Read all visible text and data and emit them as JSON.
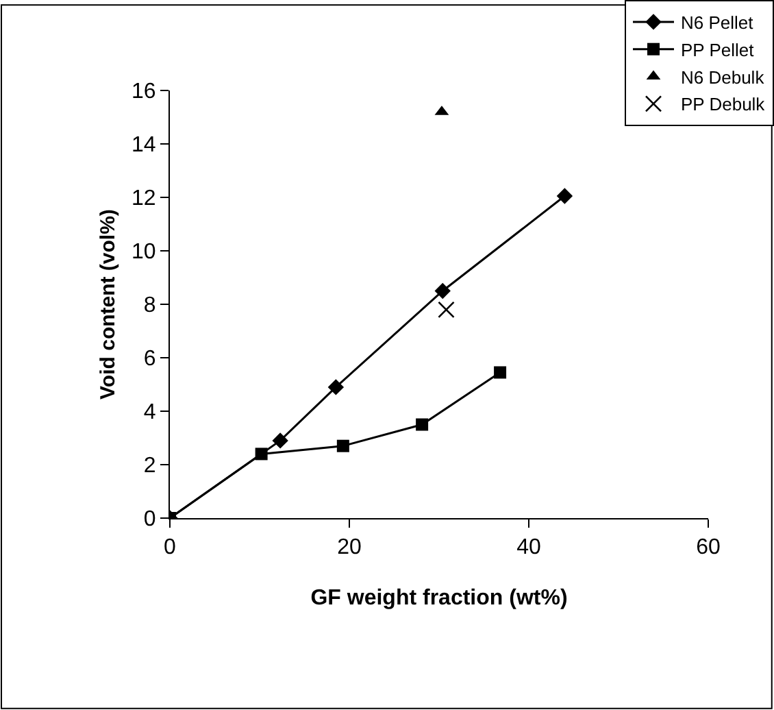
{
  "chart_data": {
    "type": "line",
    "xlabel": "GF weight fraction (wt%)",
    "ylabel": "Void content (vol%)",
    "xlim": [
      0,
      60
    ],
    "xticks": [
      0,
      20,
      40,
      60
    ],
    "ylim": [
      0,
      16
    ],
    "yticks": [
      0,
      2,
      4,
      6,
      8,
      10,
      12,
      14,
      16
    ],
    "legend": "top right",
    "series": [
      {
        "name": "N6 Pellet",
        "marker": "diamond",
        "color": "#000000",
        "x": [
          0,
          12.3,
          18.5,
          30.4,
          44
        ],
        "values": [
          0,
          2.9,
          4.9,
          8.5,
          12.05
        ]
      },
      {
        "name": "PP Pellet",
        "marker": "square",
        "color": "#000000",
        "x": [
          0,
          10.2,
          19.3,
          28.1,
          36.8
        ],
        "values": [
          0,
          2.4,
          2.7,
          3.5,
          5.45
        ]
      },
      {
        "name": "N6 Debulk",
        "type": "scatter",
        "marker": "triangle",
        "color": "#000000",
        "x": [
          30.3
        ],
        "values": [
          15.2
        ]
      },
      {
        "name": "PP Debulk",
        "type": "scatter",
        "marker": "cross",
        "color": "#000000",
        "x": [
          30.8
        ],
        "values": [
          7.8
        ]
      }
    ]
  }
}
